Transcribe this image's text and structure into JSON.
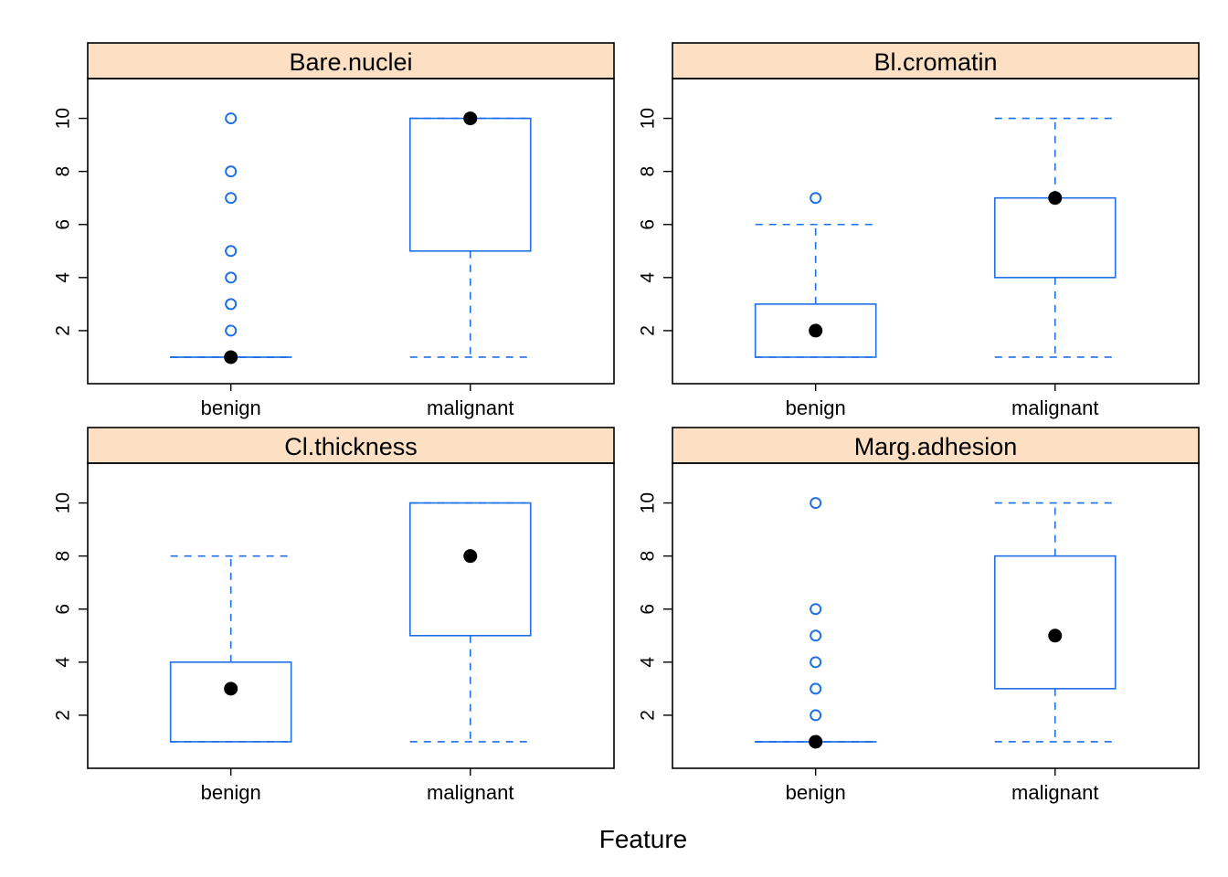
{
  "figure": {
    "xlabel": "Feature",
    "group_labels": [
      "benign",
      "malignant"
    ],
    "colors": {
      "box": "#1f6fe5",
      "median_dot": "#000000",
      "strip_fill": "#fde0c4",
      "frame": "#000000"
    }
  },
  "chart_data": [
    {
      "type": "box",
      "title": "Bare.nuclei",
      "categories": [
        "benign",
        "malignant"
      ],
      "ylim": [
        0,
        11.5
      ],
      "yticks": [
        2,
        4,
        6,
        8,
        10
      ],
      "boxes": [
        {
          "group": "benign",
          "lower_whisker": 1,
          "q1": 1,
          "median": 1,
          "q3": 1,
          "upper_whisker": 1,
          "outliers": [
            2,
            3,
            4,
            5,
            7,
            8,
            10
          ]
        },
        {
          "group": "malignant",
          "lower_whisker": 1,
          "q1": 5,
          "median": 10,
          "q3": 10,
          "upper_whisker": 10,
          "outliers": []
        }
      ]
    },
    {
      "type": "box",
      "title": "Bl.cromatin",
      "categories": [
        "benign",
        "malignant"
      ],
      "ylim": [
        0,
        11.5
      ],
      "yticks": [
        2,
        4,
        6,
        8,
        10
      ],
      "boxes": [
        {
          "group": "benign",
          "lower_whisker": 1,
          "q1": 1,
          "median": 2,
          "q3": 3,
          "upper_whisker": 6,
          "outliers": [
            7
          ]
        },
        {
          "group": "malignant",
          "lower_whisker": 1,
          "q1": 4,
          "median": 7,
          "q3": 7,
          "upper_whisker": 10,
          "outliers": []
        }
      ]
    },
    {
      "type": "box",
      "title": "Cl.thickness",
      "categories": [
        "benign",
        "malignant"
      ],
      "ylim": [
        0,
        11.5
      ],
      "yticks": [
        2,
        4,
        6,
        8,
        10
      ],
      "boxes": [
        {
          "group": "benign",
          "lower_whisker": 1,
          "q1": 1,
          "median": 3,
          "q3": 4,
          "upper_whisker": 8,
          "outliers": []
        },
        {
          "group": "malignant",
          "lower_whisker": 1,
          "q1": 5,
          "median": 8,
          "q3": 10,
          "upper_whisker": 10,
          "outliers": []
        }
      ]
    },
    {
      "type": "box",
      "title": "Marg.adhesion",
      "categories": [
        "benign",
        "malignant"
      ],
      "ylim": [
        0,
        11.5
      ],
      "yticks": [
        2,
        4,
        6,
        8,
        10
      ],
      "boxes": [
        {
          "group": "benign",
          "lower_whisker": 1,
          "q1": 1,
          "median": 1,
          "q3": 1,
          "upper_whisker": 1,
          "outliers": [
            2,
            3,
            4,
            5,
            6,
            10
          ]
        },
        {
          "group": "malignant",
          "lower_whisker": 1,
          "q1": 3,
          "median": 5,
          "q3": 8,
          "upper_whisker": 10,
          "outliers": []
        }
      ]
    }
  ]
}
